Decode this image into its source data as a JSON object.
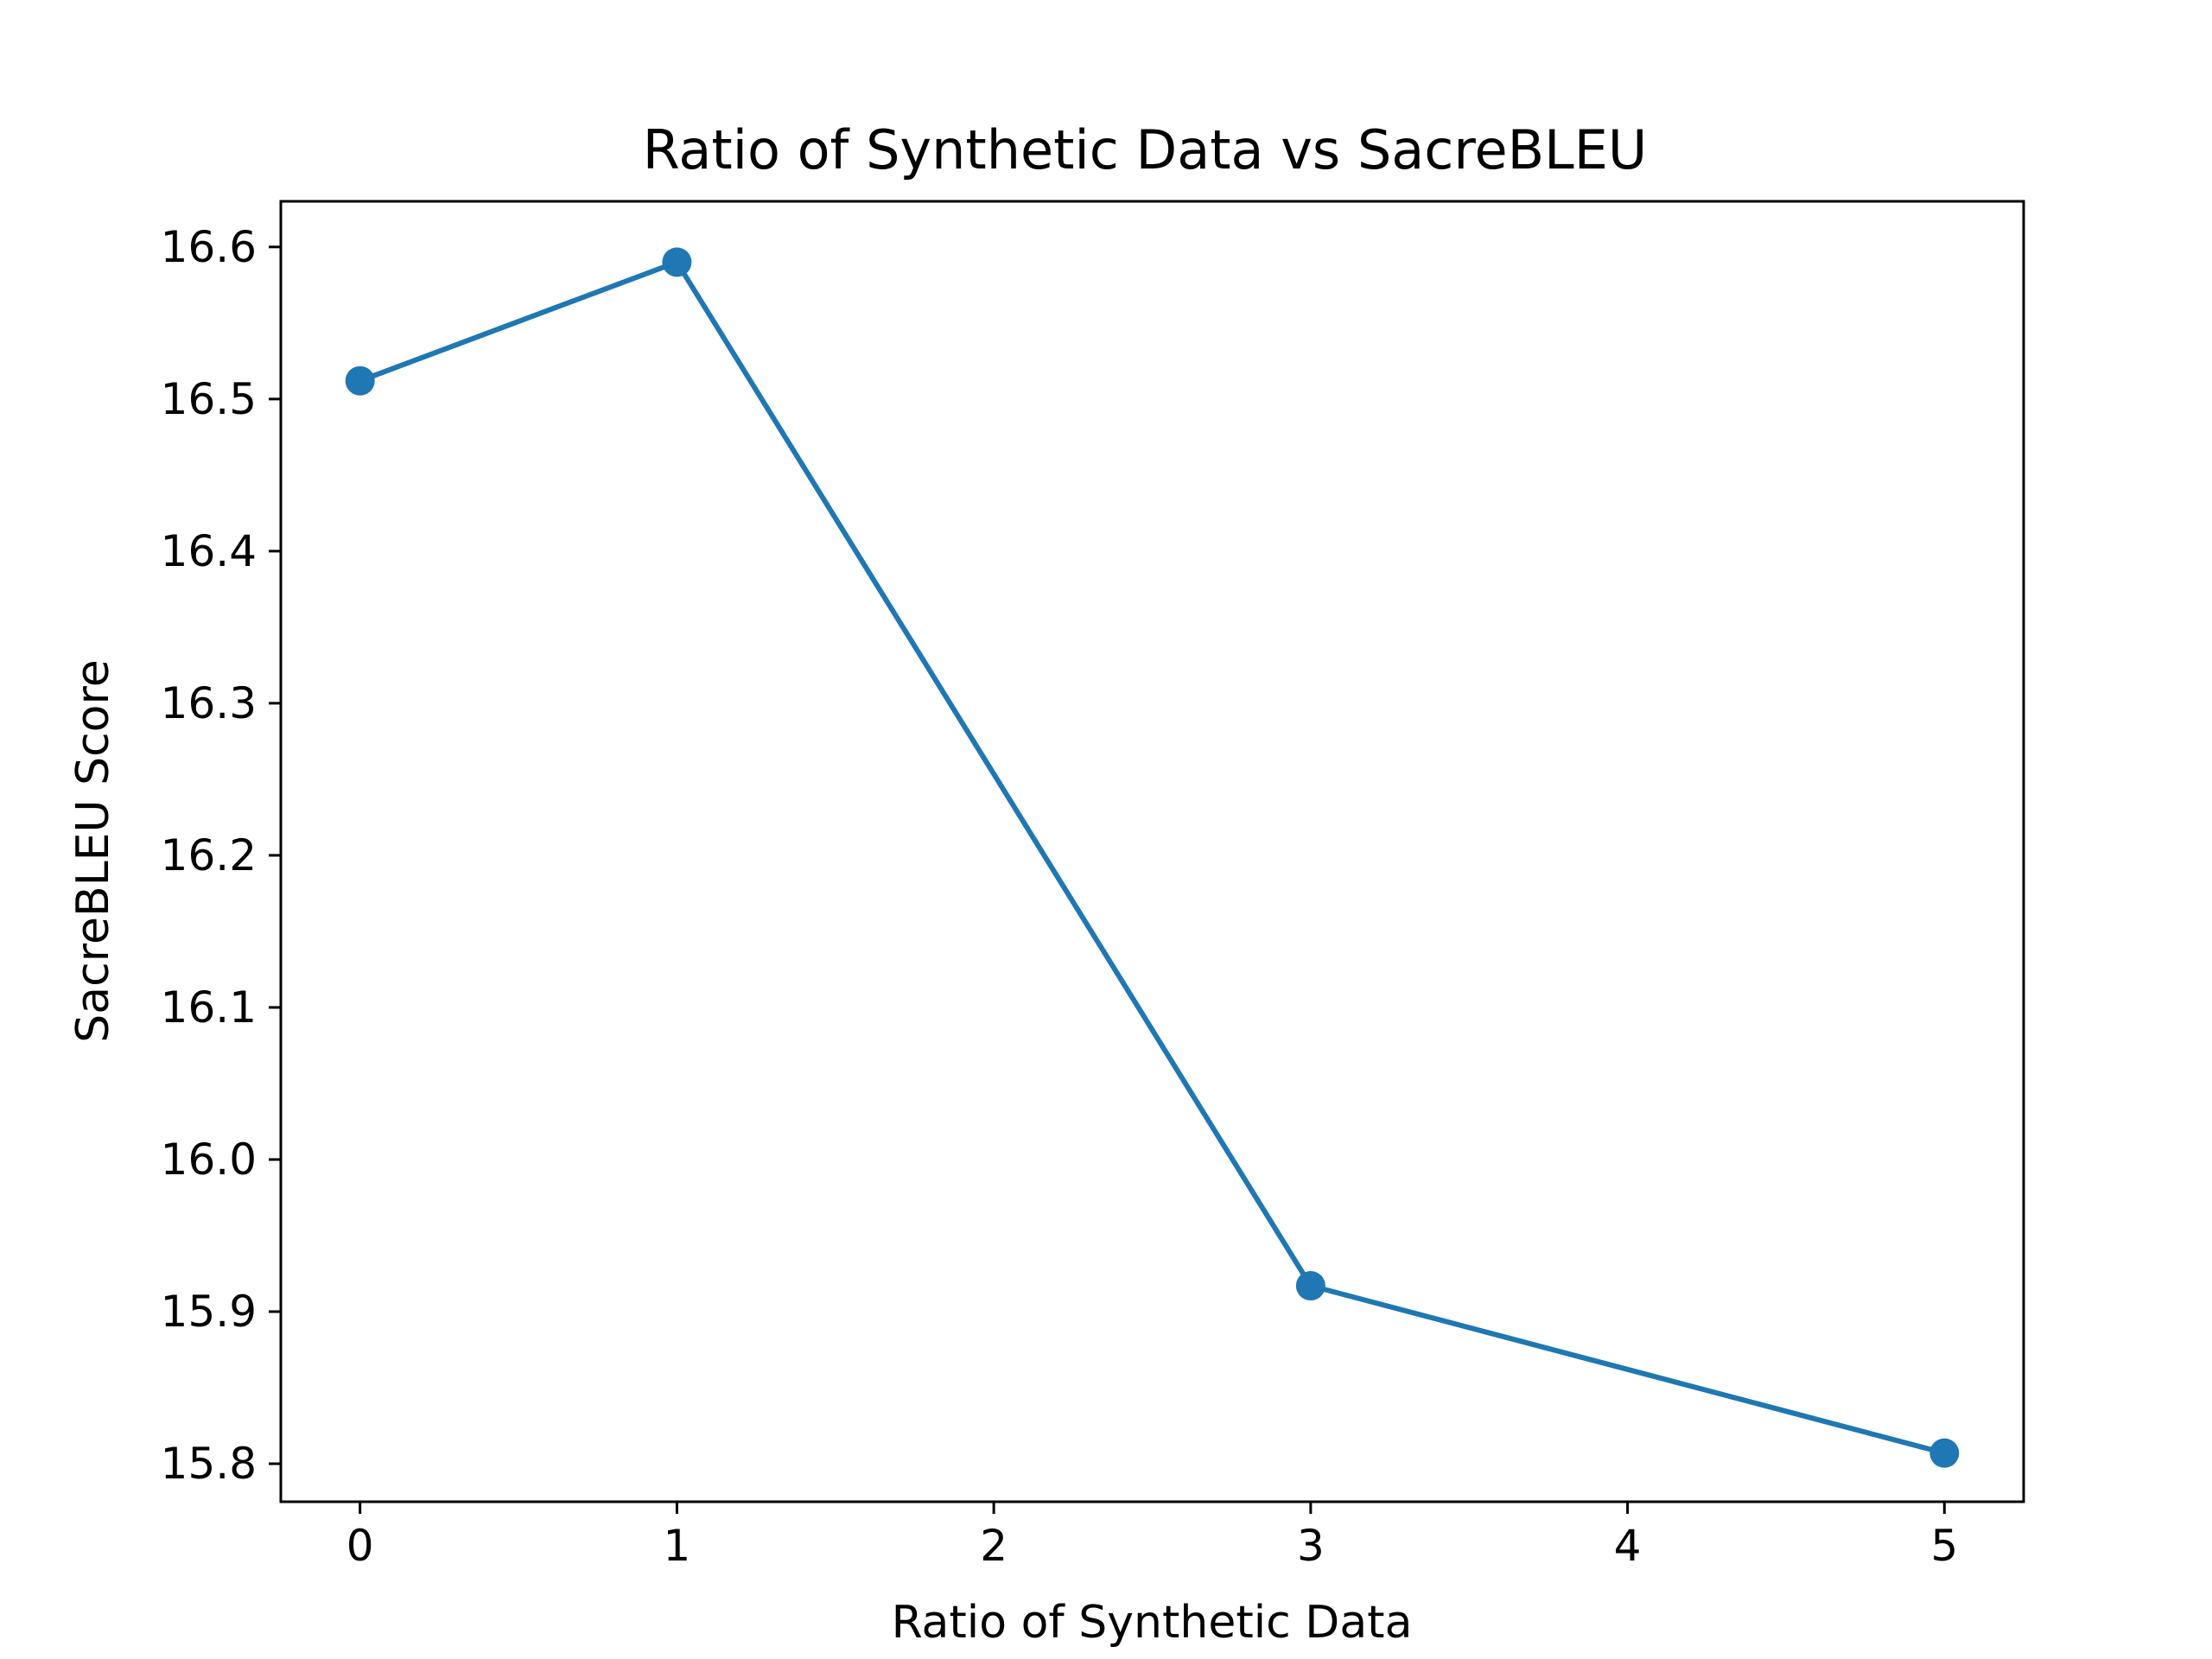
{
  "chart_data": {
    "type": "line",
    "title": "Ratio of Synthetic Data vs SacreBLEU",
    "xlabel": "Ratio of Synthetic Data",
    "ylabel": "SacreBLEU Score",
    "x": [
      0,
      1,
      3,
      5
    ],
    "series": [
      {
        "values": [
          16.512,
          16.59,
          15.917,
          15.807
        ],
        "color": "#1f77b4",
        "marker": "circle"
      }
    ],
    "xlim": [
      -0.25,
      5.25
    ],
    "ylim": [
      15.775,
      16.63
    ],
    "xticks": [
      0,
      1,
      2,
      3,
      4,
      5
    ],
    "xtick_labels": [
      "0",
      "1",
      "2",
      "3",
      "4",
      "5"
    ],
    "yticks": [
      15.8,
      15.9,
      16.0,
      16.1,
      16.2,
      16.3,
      16.4,
      16.5,
      16.6
    ],
    "ytick_labels": [
      "15.8",
      "15.9",
      "16.0",
      "16.1",
      "16.2",
      "16.3",
      "16.4",
      "16.5",
      "16.6"
    ],
    "grid": false,
    "legend": "none"
  }
}
